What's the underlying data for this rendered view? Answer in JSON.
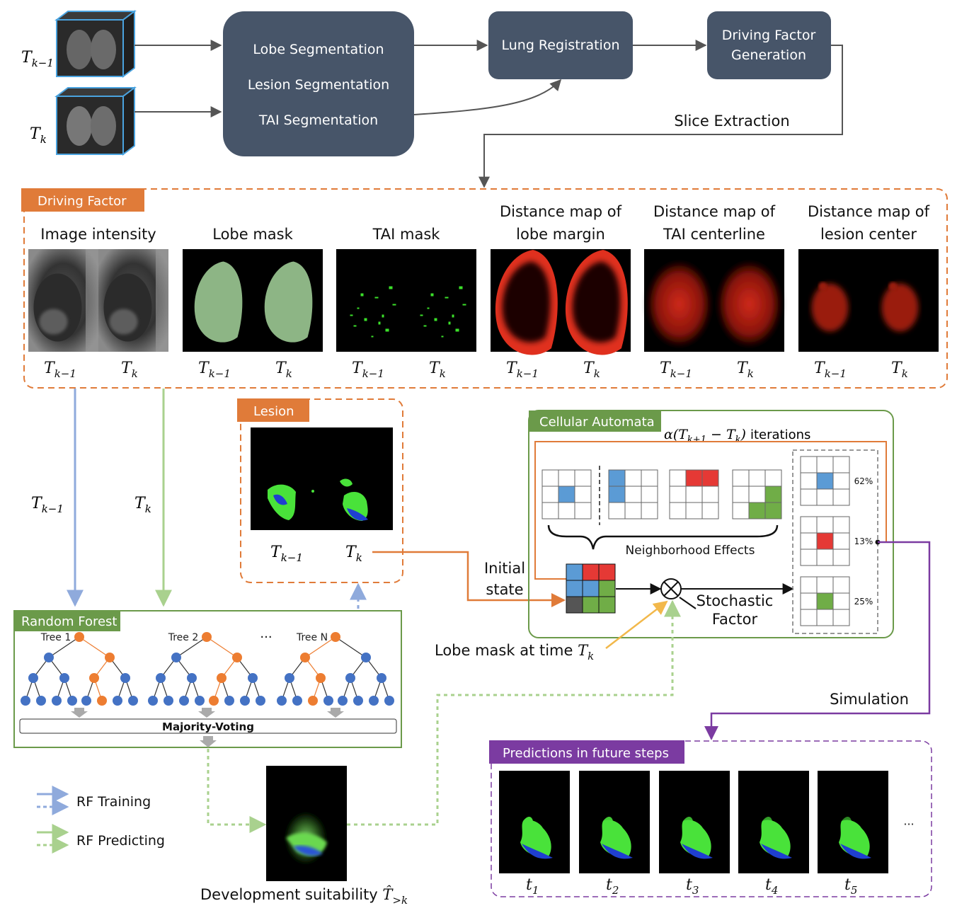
{
  "pipeline": {
    "t_prev": "T_{k−1}",
    "t_curr": "T_k",
    "segmentation": [
      "Lobe Segmentation",
      "Lesion Segmentation",
      "TAI Segmentation"
    ],
    "registration": "Lung Registration",
    "driving_gen": [
      "Driving Factor",
      "Generation"
    ],
    "slice_extraction": "Slice Extraction"
  },
  "driving_factor": {
    "tag": "Driving Factor",
    "panels": [
      {
        "title": [
          "Image intensity"
        ],
        "kind": "ct"
      },
      {
        "title": [
          "Lobe mask"
        ],
        "kind": "lobe"
      },
      {
        "title": [
          "TAI mask"
        ],
        "kind": "tai"
      },
      {
        "title": [
          "Distance map of",
          "lobe margin"
        ],
        "kind": "margin"
      },
      {
        "title": [
          "Distance map of",
          "TAI centerline"
        ],
        "kind": "centerline"
      },
      {
        "title": [
          "Distance map of",
          "lesion center"
        ],
        "kind": "lesioncenter"
      }
    ],
    "sub_prev": "T_{k−1}",
    "sub_curr": "T_k"
  },
  "lesion": {
    "tag": "Lesion",
    "sub_prev": "T_{k−1}",
    "sub_curr": "T_k"
  },
  "arrows_labels": {
    "left_prev": "T_{k−1}",
    "left_curr": "T_k"
  },
  "cellular_automata": {
    "tag": "Cellular Automata",
    "iterations": "α(T_{k+1} − T_k)  iterations",
    "neighborhood": "Neighborhood Effects",
    "initial_state": [
      "Initial",
      "state"
    ],
    "stochastic": [
      "Stochastic",
      "Factor"
    ],
    "probabilities": [
      "62%",
      "13%",
      "25%"
    ],
    "lobe_mask_label": "Lobe mask at time T_k"
  },
  "random_forest": {
    "tag": "Random Forest",
    "trees": [
      "Tree 1",
      "Tree 2",
      "Tree N"
    ],
    "ellipsis": "···",
    "majority": "Majority-Voting"
  },
  "legend": {
    "training": "RF Training",
    "predicting": "RF Predicting"
  },
  "development": "Development suitability T̂_{>k}",
  "simulation": "Simulation",
  "predictions": {
    "tag": "Predictions in future steps",
    "steps": [
      "t_1",
      "t_2",
      "t_3",
      "t_4",
      "t_5"
    ],
    "ellipsis": "···"
  },
  "colors": {
    "dark_box": "#475569",
    "orange": "#E07B39",
    "green": "#6B9A4A",
    "purple": "#7B3BA1",
    "blue_arrow": "#8FAADC",
    "green_arrow": "#A9D18E",
    "cell_blue": "#5B9BD5",
    "cell_red": "#E53935",
    "cell_green": "#70AD47",
    "node_blue": "#4472C4",
    "node_orange": "#ED7D31"
  }
}
